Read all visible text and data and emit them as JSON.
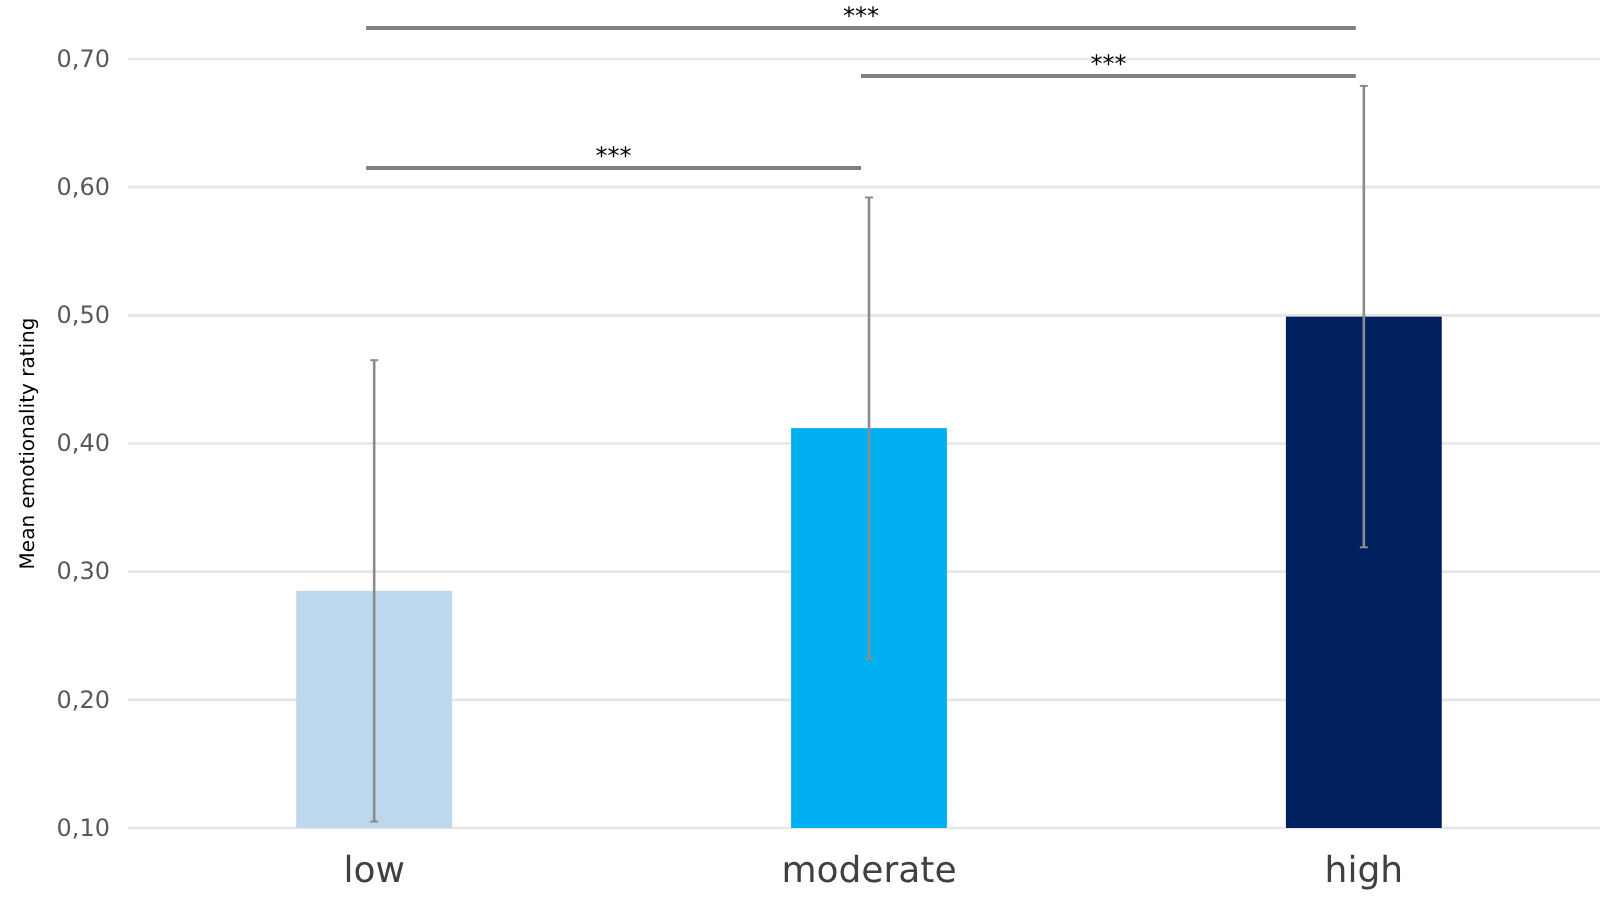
{
  "chart_data": {
    "type": "bar",
    "ylabel": "Mean emotionality rating",
    "categories": [
      "low",
      "moderate",
      "high"
    ],
    "values": [
      0.285,
      0.412,
      0.499
    ],
    "colors": [
      "#bdd7ee",
      "#00b0f0",
      "#002060"
    ],
    "errors": [
      0.18,
      0.18,
      0.18
    ],
    "ylim": [
      0.1,
      0.7
    ],
    "yticks": [
      {
        "value": 0.1,
        "label": "0,10"
      },
      {
        "value": 0.2,
        "label": "0,20"
      },
      {
        "value": 0.3,
        "label": "0,30"
      },
      {
        "value": 0.4,
        "label": "0,40"
      },
      {
        "value": 0.5,
        "label": "0,50"
      },
      {
        "value": 0.6,
        "label": "0,60"
      },
      {
        "value": 0.7,
        "label": "0,70"
      }
    ],
    "grid": "y",
    "annotations": [
      "***",
      "***",
      "***"
    ]
  }
}
